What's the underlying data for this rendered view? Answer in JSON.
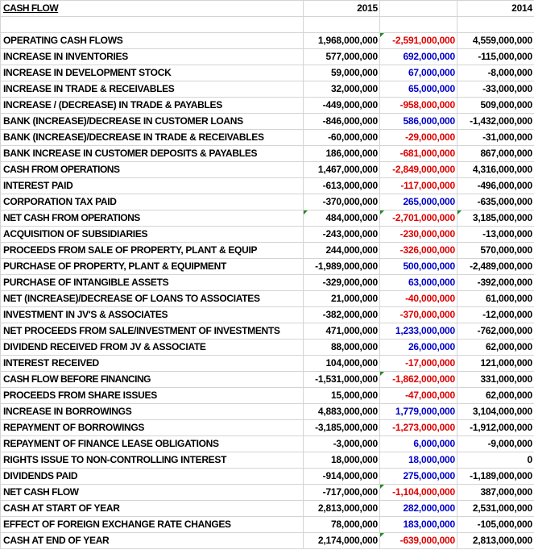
{
  "header": {
    "title": "CASH FLOW",
    "col_2015": "2015",
    "col_diff": "",
    "col_2014": "2014"
  },
  "colors": {
    "negative_change": "#e00000",
    "positive_change": "#0000cc",
    "gridline": "#d4d4d4",
    "error_flag": "#1e8c1e"
  },
  "rows": [
    {
      "label": "OPERATING CASH FLOWS",
      "y2015": "1,968,000,000",
      "diff": "-2,591,000,000",
      "y2014": "4,559,000,000",
      "bold": false,
      "flags": [
        2
      ]
    },
    {
      "label": "INCREASE IN INVENTORIES",
      "y2015": "577,000,000",
      "diff": "692,000,000",
      "y2014": "-115,000,000",
      "bold": false,
      "flags": []
    },
    {
      "label": "INCREASE IN DEVELOPMENT STOCK",
      "y2015": "59,000,000",
      "diff": "67,000,000",
      "y2014": "-8,000,000",
      "bold": false,
      "flags": []
    },
    {
      "label": "INCREASE IN TRADE & RECEIVABLES",
      "y2015": "32,000,000",
      "diff": "65,000,000",
      "y2014": "-33,000,000",
      "bold": false,
      "flags": []
    },
    {
      "label": "INCREASE / (DECREASE) IN TRADE & PAYABLES",
      "y2015": "-449,000,000",
      "diff": "-958,000,000",
      "y2014": "509,000,000",
      "bold": false,
      "flags": []
    },
    {
      "label": "BANK (INCREASE)/DECREASE IN CUSTOMER LOANS",
      "y2015": "-846,000,000",
      "diff": "586,000,000",
      "y2014": "-1,432,000,000",
      "bold": false,
      "flags": []
    },
    {
      "label": "BANK (INCREASE)/DECREASE IN TRADE & RECEIVABLES",
      "y2015": "-60,000,000",
      "diff": "-29,000,000",
      "y2014": "-31,000,000",
      "bold": false,
      "flags": []
    },
    {
      "label": "BANK INCREASE IN CUSTOMER DEPOSITS & PAYABLES",
      "y2015": "186,000,000",
      "diff": "-681,000,000",
      "y2014": "867,000,000",
      "bold": false,
      "flags": []
    },
    {
      "label": "CASH FROM OPERATIONS",
      "y2015": "1,467,000,000",
      "diff": "-2,849,000,000",
      "y2014": "4,316,000,000",
      "bold": true,
      "flags": []
    },
    {
      "label": "INTEREST PAID",
      "y2015": "-613,000,000",
      "diff": "-117,000,000",
      "y2014": "-496,000,000",
      "bold": false,
      "flags": []
    },
    {
      "label": "CORPORATION TAX PAID",
      "y2015": "-370,000,000",
      "diff": "265,000,000",
      "y2014": "-635,000,000",
      "bold": false,
      "flags": []
    },
    {
      "label": "NET CASH FROM OPERATIONS",
      "y2015": "484,000,000",
      "diff": "-2,701,000,000",
      "y2014": "3,185,000,000",
      "bold": true,
      "flags": [
        1,
        2,
        3
      ]
    },
    {
      "label": "ACQUISITION OF SUBSIDIARIES",
      "y2015": "-243,000,000",
      "diff": "-230,000,000",
      "y2014": "-13,000,000",
      "bold": false,
      "flags": []
    },
    {
      "label": "PROCEEDS FROM SALE OF PROPERTY, PLANT & EQUIP",
      "y2015": "244,000,000",
      "diff": "-326,000,000",
      "y2014": "570,000,000",
      "bold": false,
      "flags": []
    },
    {
      "label": "PURCHASE OF PROPERTY, PLANT & EQUIPMENT",
      "y2015": "-1,989,000,000",
      "diff": "500,000,000",
      "y2014": "-2,489,000,000",
      "bold": false,
      "flags": []
    },
    {
      "label": "PURCHASE OF INTANGIBLE ASSETS",
      "y2015": "-329,000,000",
      "diff": "63,000,000",
      "y2014": "-392,000,000",
      "bold": false,
      "flags": []
    },
    {
      "label": "NET (INCREASE)/DECREASE OF LOANS TO ASSOCIATES",
      "y2015": "21,000,000",
      "diff": "-40,000,000",
      "y2014": "61,000,000",
      "bold": false,
      "flags": []
    },
    {
      "label": "INVESTMENT IN JV'S & ASSOCIATES",
      "y2015": "-382,000,000",
      "diff": "-370,000,000",
      "y2014": "-12,000,000",
      "bold": false,
      "flags": []
    },
    {
      "label": "NET PROCEEDS FROM SALE/INVESTMENT OF INVESTMENTS",
      "y2015": "471,000,000",
      "diff": "1,233,000,000",
      "y2014": "-762,000,000",
      "bold": false,
      "flags": []
    },
    {
      "label": "DIVIDEND RECEIVED FROM JV & ASSOCIATE",
      "y2015": "88,000,000",
      "diff": "26,000,000",
      "y2014": "62,000,000",
      "bold": false,
      "flags": []
    },
    {
      "label": "INTEREST RECEIVED",
      "y2015": "104,000,000",
      "diff": "-17,000,000",
      "y2014": "121,000,000",
      "bold": false,
      "flags": []
    },
    {
      "label": "CASH FLOW BEFORE FINANCING",
      "y2015": "-1,531,000,000",
      "diff": "-1,862,000,000",
      "y2014": "331,000,000",
      "bold": true,
      "flags": [
        2
      ]
    },
    {
      "label": "PROCEEDS FROM SHARE ISSUES",
      "y2015": "15,000,000",
      "diff": "-47,000,000",
      "y2014": "62,000,000",
      "bold": false,
      "flags": []
    },
    {
      "label": "INCREASE IN BORROWINGS",
      "y2015": "4,883,000,000",
      "diff": "1,779,000,000",
      "y2014": "3,104,000,000",
      "bold": false,
      "flags": []
    },
    {
      "label": "REPAYMENT OF BORROWINGS",
      "y2015": "-3,185,000,000",
      "diff": "-1,273,000,000",
      "y2014": "-1,912,000,000",
      "bold": false,
      "flags": []
    },
    {
      "label": "REPAYMENT OF FINANCE LEASE OBLIGATIONS",
      "y2015": "-3,000,000",
      "diff": "6,000,000",
      "y2014": "-9,000,000",
      "bold": false,
      "flags": []
    },
    {
      "label": "RIGHTS ISSUE TO NON-CONTROLLING INTEREST",
      "y2015": "18,000,000",
      "diff": "18,000,000",
      "y2014": "0",
      "bold": false,
      "flags": []
    },
    {
      "label": "DIVIDENDS PAID",
      "y2015": "-914,000,000",
      "diff": "275,000,000",
      "y2014": "-1,189,000,000",
      "bold": false,
      "flags": []
    },
    {
      "label": "NET CASH FLOW",
      "y2015": "-717,000,000",
      "diff": "-1,104,000,000",
      "y2014": "387,000,000",
      "bold": true,
      "flags": [
        2
      ]
    },
    {
      "label": "CASH AT START OF YEAR",
      "y2015": "2,813,000,000",
      "diff": "282,000,000",
      "y2014": "2,531,000,000",
      "bold": false,
      "flags": []
    },
    {
      "label": "EFFECT OF FOREIGN EXCHANGE RATE CHANGES",
      "y2015": "78,000,000",
      "diff": "183,000,000",
      "y2014": "-105,000,000",
      "bold": false,
      "flags": []
    },
    {
      "label": "CASH AT END OF YEAR",
      "y2015": "2,174,000,000",
      "diff": "-639,000,000",
      "y2014": "2,813,000,000",
      "bold": false,
      "flags": [
        2
      ]
    }
  ]
}
